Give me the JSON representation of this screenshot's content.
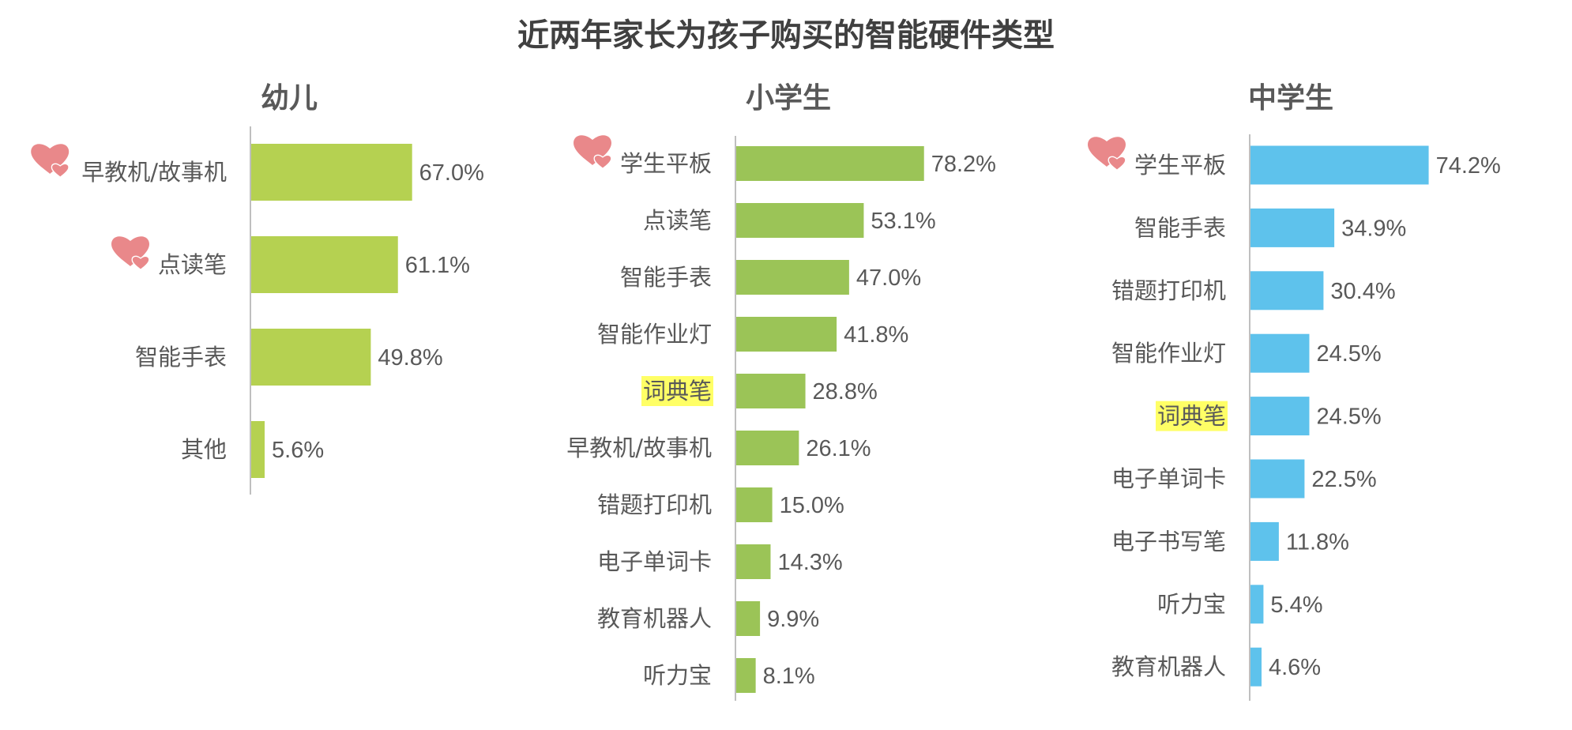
{
  "chart_data": {
    "title": "近两年家长为孩子购买的智能硬件类型",
    "type": "bar",
    "orientation": "horizontal",
    "highlight_color": "#ffff66",
    "marker_color": "#e9888a",
    "panels": [
      {
        "title": "幼儿",
        "color": "#b5d151",
        "categories": [
          "早教机/故事机",
          "点读笔",
          "智能手表",
          "其他"
        ],
        "values": [
          67.0,
          61.1,
          49.8,
          5.6
        ],
        "value_labels": [
          "67.0%",
          "61.1%",
          "49.8%",
          "5.6%"
        ],
        "marked": [
          "早教机/故事机",
          "点读笔"
        ],
        "highlighted": []
      },
      {
        "title": "小学生",
        "color": "#9bc457",
        "categories": [
          "学生平板",
          "点读笔",
          "智能手表",
          "智能作业灯",
          "词典笔",
          "早教机/故事机",
          "错题打印机",
          "电子单词卡",
          "教育机器人",
          "听力宝"
        ],
        "values": [
          78.2,
          53.1,
          47.0,
          41.8,
          28.8,
          26.1,
          15.0,
          14.3,
          9.9,
          8.1
        ],
        "value_labels": [
          "78.2%",
          "53.1%",
          "47.0%",
          "41.8%",
          "28.8%",
          "26.1%",
          "15.0%",
          "14.3%",
          "9.9%",
          "8.1%"
        ],
        "marked": [
          "学生平板"
        ],
        "highlighted": [
          "词典笔"
        ]
      },
      {
        "title": "中学生",
        "color": "#5ec2ec",
        "categories": [
          "学生平板",
          "智能手表",
          "错题打印机",
          "智能作业灯",
          "词典笔",
          "电子单词卡",
          "电子书写笔",
          "听力宝",
          "教育机器人"
        ],
        "values": [
          74.2,
          34.9,
          30.4,
          24.5,
          24.5,
          22.5,
          11.8,
          5.4,
          4.6
        ],
        "value_labels": [
          "74.2%",
          "34.9%",
          "30.4%",
          "24.5%",
          "24.5%",
          "22.5%",
          "11.8%",
          "5.4%",
          "4.6%"
        ],
        "marked": [
          "学生平板"
        ],
        "highlighted": [
          "词典笔"
        ]
      }
    ]
  }
}
